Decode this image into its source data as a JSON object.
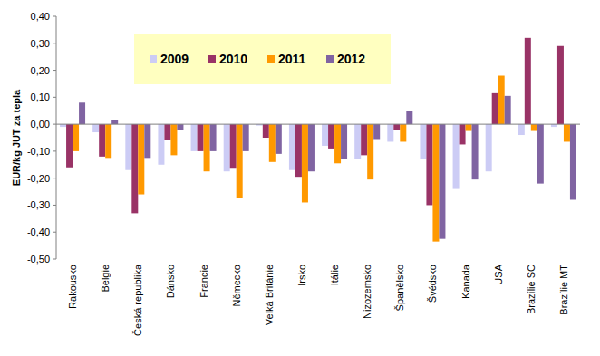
{
  "chart_data": {
    "type": "bar",
    "y_label": "EUR/kg JUT za tepla",
    "categories": [
      "Rakousko",
      "Belgie",
      "Česká republika",
      "Dánsko",
      "Francie",
      "Německo",
      "Velká Británie",
      "Irsko",
      "Itálie",
      "Nizozemsko",
      "Španělsko",
      "Švédsko",
      "Kanada",
      "USA",
      "Brazílie SC",
      "Brazílie MT"
    ],
    "series": [
      {
        "name": "2009",
        "color": "#ccccf5",
        "values": [
          -0.01,
          -0.03,
          -0.17,
          -0.15,
          -0.1,
          -0.175,
          -0.005,
          -0.17,
          -0.08,
          -0.13,
          -0.065,
          -0.13,
          -0.24,
          -0.175,
          -0.04,
          -0.01
        ]
      },
      {
        "name": "2010",
        "color": "#993366",
        "values": [
          -0.16,
          -0.12,
          -0.33,
          -0.06,
          -0.1,
          -0.165,
          -0.05,
          -0.195,
          -0.09,
          -0.115,
          -0.02,
          -0.3,
          -0.075,
          0.115,
          0.32,
          0.29
        ]
      },
      {
        "name": "2011",
        "color": "#ff9900",
        "values": [
          -0.1,
          -0.125,
          -0.26,
          -0.115,
          -0.175,
          -0.275,
          -0.14,
          -0.29,
          -0.145,
          -0.205,
          -0.065,
          -0.435,
          -0.025,
          0.18,
          -0.025,
          -0.065
        ]
      },
      {
        "name": "2012",
        "color": "#8064a2",
        "values": [
          0.08,
          0.015,
          -0.125,
          -0.02,
          -0.1,
          -0.1,
          -0.11,
          -0.175,
          -0.13,
          -0.055,
          0.05,
          -0.425,
          -0.205,
          0.105,
          -0.22,
          -0.28
        ]
      }
    ],
    "ylim": [
      -0.5,
      0.4
    ],
    "yticks": [
      {
        "value": -0.5,
        "label": "-0,50"
      },
      {
        "value": -0.4,
        "label": "-0,40"
      },
      {
        "value": -0.3,
        "label": "-0,30"
      },
      {
        "value": -0.2,
        "label": "-0,20"
      },
      {
        "value": -0.1,
        "label": "-0,10"
      },
      {
        "value": 0,
        "label": "0,00"
      },
      {
        "value": 0.1,
        "label": "0,10"
      },
      {
        "value": 0.2,
        "label": "0,20"
      },
      {
        "value": 0.3,
        "label": "0,30"
      },
      {
        "value": 0.4,
        "label": "0,40"
      }
    ],
    "grid": false,
    "legend": "top-left"
  }
}
